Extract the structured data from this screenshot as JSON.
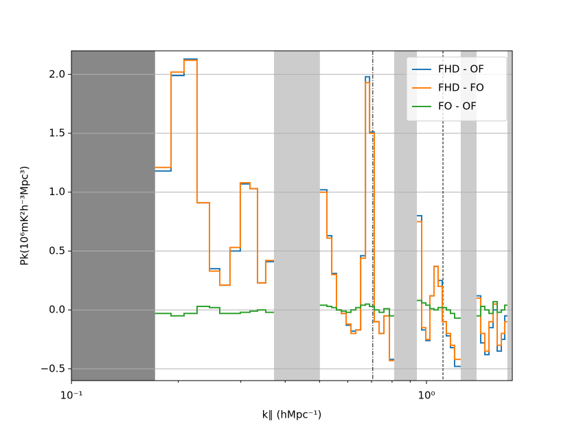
{
  "chart_data": {
    "type": "step",
    "xlabel": "k∥ (hMpc⁻¹)",
    "ylabel": "Pk(10⁶mK²h⁻³Mpc³)",
    "xscale": "log",
    "xlim": [
      0.1,
      1.745
    ],
    "ylim": [
      -0.6,
      2.2
    ],
    "xticks": [
      {
        "value": 0.1,
        "label": "10⁻¹"
      },
      {
        "value": 1,
        "label": "10⁰"
      }
    ],
    "xminorticks": [
      0.2,
      0.3,
      0.4,
      0.5,
      0.6,
      0.7,
      0.8,
      0.9
    ],
    "yticks": [
      {
        "value": -0.5,
        "label": "−0.5"
      },
      {
        "value": 0,
        "label": "0.0"
      },
      {
        "value": 0.5,
        "label": "0.5"
      },
      {
        "value": 1,
        "label": "1.0"
      },
      {
        "value": 1.5,
        "label": "1.5"
      },
      {
        "value": 2,
        "label": "2.0"
      }
    ],
    "grid": "y",
    "legend": "upper right",
    "spans": [
      {
        "range": [
          0.1,
          0.172
        ],
        "color": "#888888"
      },
      {
        "range": [
          0.372,
          0.501
        ],
        "color": "#cccccc"
      },
      {
        "range": [
          0.811,
          0.94
        ],
        "color": "#cccccc"
      },
      {
        "range": [
          1.249,
          1.384
        ],
        "color": "#cccccc"
      },
      {
        "range": [
          1.69,
          1.745
        ],
        "color": "#cccccc"
      }
    ],
    "vlines": [
      {
        "value": 0.706,
        "style": "dashdot"
      },
      {
        "value": 1.113,
        "style": "dashed"
      }
    ],
    "x": [
      0.172,
      0.1908,
      0.2076,
      0.2259,
      0.2448,
      0.2617,
      0.2797,
      0.299,
      0.3184,
      0.3343,
      0.3526,
      0.372,
      0.501,
      0.5243,
      0.541,
      0.5579,
      0.5757,
      0.594,
      0.6128,
      0.6323,
      0.6524,
      0.6731,
      0.6913,
      0.7129,
      0.7356,
      0.7589,
      0.7864,
      0.811,
      0.94,
      0.9694,
      0.9957,
      1.0226,
      1.0502,
      1.0786,
      1.1078,
      1.1377,
      1.1685,
      1.2001,
      1.249,
      1.384,
      1.4215,
      1.46,
      1.4997,
      1.5403,
      1.582,
      1.6249,
      1.6614,
      1.69
    ],
    "series": [
      {
        "name": "FHD - OF",
        "color": "#1f77b4",
        "values": [
          1.18,
          1.99,
          2.13,
          0.91,
          0.35,
          0.21,
          0.5,
          1.07,
          1.03,
          0.23,
          0.41,
          null,
          1.02,
          0.63,
          0.31,
          0.0,
          -0.03,
          -0.13,
          -0.18,
          -0.17,
          0.46,
          1.98,
          1.51,
          -0.1,
          -0.2,
          -0.05,
          -0.42,
          null,
          0.8,
          -0.17,
          -0.26,
          0.12,
          0.37,
          0.25,
          -0.1,
          -0.22,
          -0.32,
          -0.48,
          null,
          0.12,
          -0.28,
          -0.38,
          -0.15,
          0.0,
          -0.35,
          -0.25,
          -0.05,
          null
        ]
      },
      {
        "name": "FHD - FO",
        "color": "#ff7f0e",
        "values": [
          1.21,
          2.02,
          2.12,
          0.91,
          0.33,
          0.21,
          0.53,
          1.08,
          1.03,
          0.23,
          0.42,
          null,
          1.0,
          0.61,
          0.3,
          0.0,
          -0.03,
          -0.12,
          -0.2,
          -0.17,
          0.44,
          1.93,
          1.5,
          -0.1,
          -0.2,
          -0.05,
          -0.43,
          null,
          0.75,
          -0.15,
          -0.25,
          0.12,
          0.37,
          0.2,
          -0.1,
          -0.2,
          -0.3,
          -0.42,
          null,
          0.1,
          -0.2,
          -0.35,
          -0.1,
          0.05,
          -0.3,
          -0.2,
          -0.1,
          null
        ]
      },
      {
        "name": "FO - OF",
        "color": "#2ca02c",
        "values": [
          -0.03,
          -0.05,
          -0.03,
          0.03,
          0.02,
          -0.03,
          -0.03,
          -0.02,
          -0.01,
          0.0,
          -0.02,
          null,
          0.04,
          0.03,
          0.02,
          0.0,
          -0.01,
          -0.02,
          0.0,
          0.02,
          0.04,
          0.05,
          0.03,
          0.0,
          -0.02,
          0.01,
          -0.05,
          null,
          0.08,
          0.06,
          0.04,
          0.01,
          0.0,
          0.02,
          0.02,
          0.0,
          -0.03,
          -0.07,
          null,
          -0.05,
          0.03,
          0.0,
          -0.03,
          0.07,
          -0.02,
          0.0,
          0.04,
          null
        ]
      }
    ]
  }
}
